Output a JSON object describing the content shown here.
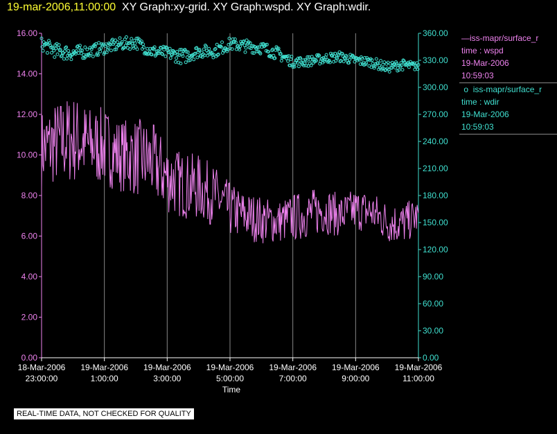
{
  "header": {
    "timestamp": "19-mar-2006,11:00:00",
    "titles": "XY Graph:xy-grid.  XY Graph:wspd.  XY Graph:wdir."
  },
  "legend": [
    {
      "marker": "—",
      "source": "iss-mapr/surface_r",
      "label": "time : wspd",
      "date": "19-Mar-2006",
      "time": "10:59:03"
    },
    {
      "marker": "o",
      "source": "iss-mapr/surface_r",
      "label": "time : wdir",
      "date": "19-Mar-2006",
      "time": "10:59:03"
    }
  ],
  "notice": "REAL-TIME DATA, NOT CHECKED FOR QUALITY",
  "colors": {
    "wspd": "#ee82ee",
    "wdir": "#40e0d0",
    "grid": "#888888"
  },
  "chart_data": {
    "type": "line",
    "xlabel": "Time",
    "x_range_hours": [
      -1,
      11
    ],
    "x_ticks": [
      {
        "hour": -1,
        "line1": "18-Mar-2006",
        "line2": "23:00:00"
      },
      {
        "hour": 1,
        "line1": "19-Mar-2006",
        "line2": "1:00:00"
      },
      {
        "hour": 3,
        "line1": "19-Mar-2006",
        "line2": "3:00:00"
      },
      {
        "hour": 5,
        "line1": "19-Mar-2006",
        "line2": "5:00:00"
      },
      {
        "hour": 7,
        "line1": "19-Mar-2006",
        "line2": "7:00:00"
      },
      {
        "hour": 9,
        "line1": "19-Mar-2006",
        "line2": "9:00:00"
      },
      {
        "hour": 11,
        "line1": "19-Mar-2006",
        "line2": "11:00:00"
      }
    ],
    "y_left": {
      "range": [
        0,
        16
      ],
      "ticks": [
        "0.00",
        "2.00",
        "4.00",
        "6.00",
        "8.00",
        "10.00",
        "12.00",
        "14.00",
        "16.00"
      ]
    },
    "y_right": {
      "range": [
        0,
        360
      ],
      "ticks": [
        "0.00",
        "30.00",
        "60.00",
        "90.00",
        "120.00",
        "150.00",
        "180.00",
        "210.00",
        "240.00",
        "270.00",
        "300.00",
        "330.00",
        "360.00"
      ]
    },
    "grid": "vertical",
    "series": [
      {
        "name": "time : wspd",
        "axis": "left",
        "style": "line",
        "x": [
          -1.0,
          -0.5,
          0.0,
          0.5,
          1.0,
          1.5,
          2.0,
          2.5,
          3.0,
          3.5,
          4.0,
          4.5,
          5.0,
          5.5,
          6.0,
          6.5,
          7.0,
          7.5,
          8.0,
          8.5,
          9.0,
          9.5,
          10.0,
          10.5,
          11.0
        ],
        "mean": [
          10.3,
          10.6,
          10.8,
          10.5,
          10.4,
          10.0,
          9.9,
          9.7,
          8.9,
          8.5,
          8.4,
          8.0,
          7.3,
          7.0,
          6.8,
          6.7,
          6.9,
          7.1,
          7.3,
          7.0,
          7.3,
          7.2,
          6.7,
          6.6,
          7.0
        ],
        "amp": [
          1.3,
          1.4,
          1.5,
          1.3,
          1.3,
          1.2,
          1.3,
          1.3,
          1.2,
          1.1,
          1.1,
          1.0,
          0.9,
          0.8,
          0.8,
          0.7,
          0.8,
          0.8,
          0.8,
          0.7,
          0.7,
          0.7,
          0.7,
          0.7,
          0.6
        ]
      },
      {
        "name": "time : wdir",
        "axis": "right",
        "style": "points",
        "x": [
          -1.0,
          -0.5,
          0.0,
          0.5,
          1.0,
          1.5,
          2.0,
          2.5,
          3.0,
          3.5,
          4.0,
          4.5,
          5.0,
          5.5,
          6.0,
          6.5,
          7.0,
          7.5,
          8.0,
          8.5,
          9.0,
          9.5,
          10.0,
          10.5,
          11.0
        ],
        "mean": [
          348,
          340,
          338,
          340,
          344,
          348,
          350,
          340,
          338,
          334,
          340,
          340,
          348,
          346,
          344,
          338,
          328,
          329,
          332,
          334,
          330,
          328,
          322,
          325,
          323
        ],
        "amp": [
          5,
          6,
          6,
          5,
          5,
          5,
          5,
          5,
          5,
          6,
          5,
          5,
          5,
          5,
          5,
          5,
          4,
          4,
          4,
          4,
          4,
          4,
          4,
          4,
          3
        ]
      }
    ]
  }
}
